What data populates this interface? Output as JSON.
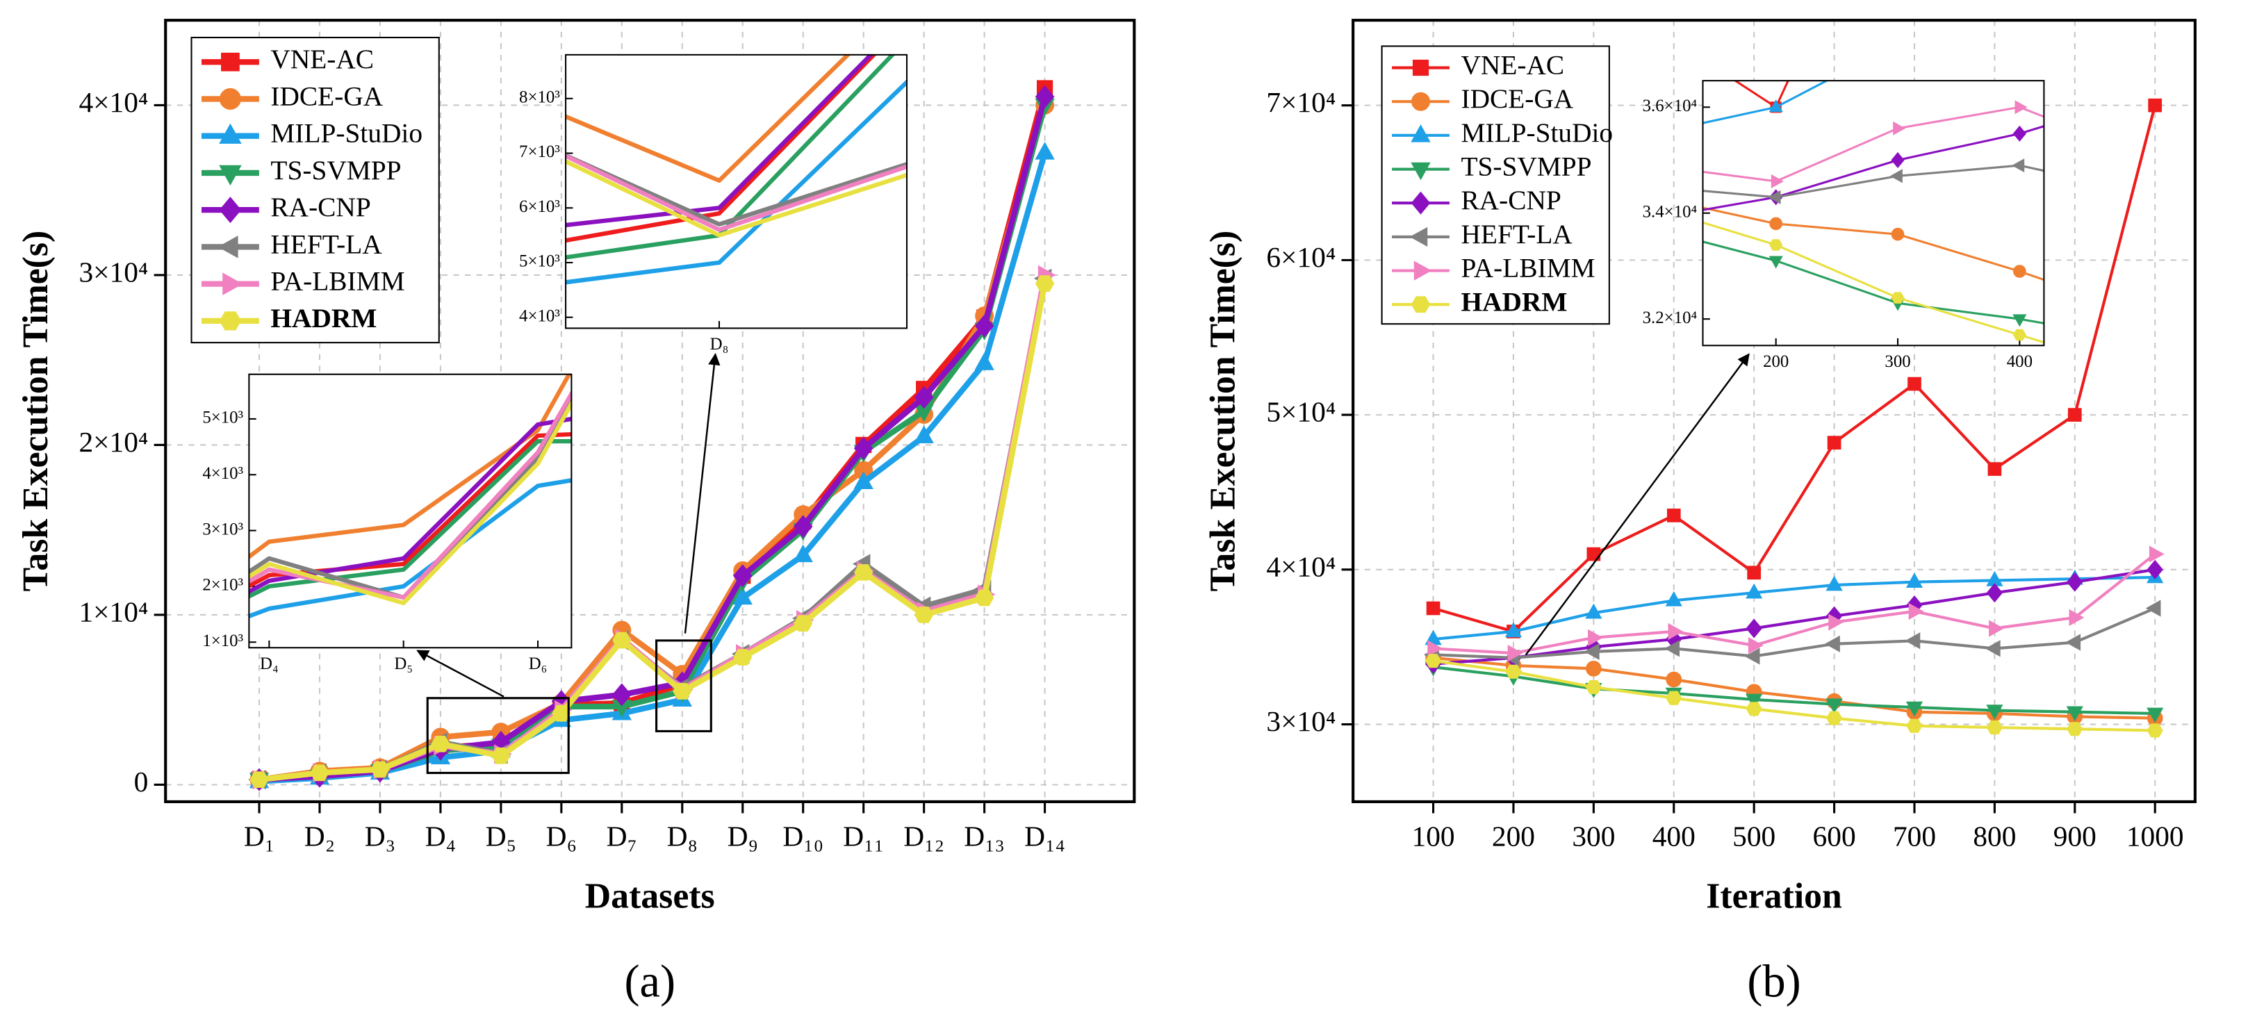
{
  "chart_data": [
    {
      "type": "line",
      "label": "(a)",
      "x_label": "Datasets",
      "y_label": "Task Execution Time(s)",
      "categories": [
        "D₁",
        "D₂",
        "D₃",
        "D₄",
        "D₅",
        "D₆",
        "D₇",
        "D₈",
        "D₉",
        "D₁₀",
        "D₁₁",
        "D₁₂",
        "D₁₃",
        "D₁₄"
      ],
      "ylim": [
        -1000,
        45000
      ],
      "yticks": [
        0,
        {
          "value": 10000,
          "label": "1×10⁴"
        },
        {
          "value": 20000,
          "label": "2×10⁴"
        },
        {
          "value": 30000,
          "label": "3×10⁴"
        },
        {
          "value": 40000,
          "label": "4×10⁴"
        }
      ],
      "grid": true,
      "series": [
        {
          "name": "VNE-AC",
          "color": "#ee1c1c",
          "marker": "square",
          "values": [
            300,
            600,
            900,
            2200,
            2400,
            4700,
            4800,
            5900,
            12300,
            15500,
            20000,
            23300,
            27500,
            41000
          ]
        },
        {
          "name": "IDCE-GA",
          "color": "#f08030",
          "marker": "circle",
          "values": [
            300,
            800,
            1000,
            2800,
            3100,
            4800,
            9100,
            6500,
            12600,
            15900,
            18500,
            21800,
            27600,
            40000
          ]
        },
        {
          "name": "MILP-StuDio",
          "color": "#1ea0e8",
          "marker": "triangle-up",
          "values": [
            200,
            400,
            700,
            1600,
            2000,
            3800,
            4200,
            5000,
            11000,
            13500,
            17800,
            20500,
            24800,
            37200
          ]
        },
        {
          "name": "TS-SVMPP",
          "color": "#2aa060",
          "marker": "triangle-down",
          "values": [
            300,
            500,
            800,
            2000,
            2300,
            4600,
            4600,
            5500,
            12000,
            15000,
            19600,
            22000,
            26800,
            40000
          ]
        },
        {
          "name": "RA-CNP",
          "color": "#8a10c0",
          "marker": "diamond",
          "values": [
            300,
            500,
            800,
            2100,
            2500,
            4900,
            5300,
            6000,
            12300,
            15200,
            19800,
            22800,
            27000,
            40500
          ]
        },
        {
          "name": "HEFT-LA",
          "color": "#808080",
          "marker": "triangle-left",
          "values": [
            300,
            700,
            900,
            2500,
            1800,
            4300,
            8500,
            5700,
            7700,
            9800,
            13000,
            10500,
            11500,
            29800
          ]
        },
        {
          "name": "PA-LBIMM",
          "color": "#f080c0",
          "marker": "triangle-right",
          "values": [
            300,
            700,
            900,
            2300,
            1800,
            4400,
            8600,
            5600,
            7700,
            9700,
            12600,
            10200,
            11200,
            30000
          ]
        },
        {
          "name": "HADRM",
          "color": "#e8e040",
          "marker": "hexagon",
          "font_weight": "bold",
          "values": [
            300,
            700,
            900,
            2400,
            1700,
            4200,
            8500,
            5500,
            7500,
            9500,
            12500,
            10000,
            11000,
            29500
          ]
        }
      ],
      "insets": [
        {
          "ylim": [
            900,
            5800
          ],
          "yticks": [
            {
              "value": 1000,
              "label": "1×10³"
            },
            {
              "value": 2000,
              "label": "2×10³"
            },
            {
              "value": 3000,
              "label": "3×10³"
            },
            {
              "value": 4000,
              "label": "4×10³"
            },
            {
              "value": 5000,
              "label": "5×10³"
            }
          ]
        },
        {
          "ylim": [
            3800,
            8800
          ],
          "yticks": [
            {
              "value": 4000,
              "label": "4×10³"
            },
            {
              "value": 5000,
              "label": "5×10³"
            },
            {
              "value": 6000,
              "label": "6×10³"
            },
            {
              "value": 7000,
              "label": "7×10³"
            },
            {
              "value": 8000,
              "label": "8×10³"
            }
          ]
        }
      ]
    },
    {
      "type": "line",
      "label": "(b)",
      "x_label": "Iteration",
      "y_label": "Task Execution Time(s)",
      "x": [
        100,
        200,
        300,
        400,
        500,
        600,
        700,
        800,
        900,
        1000
      ],
      "xlim": [
        0,
        1050
      ],
      "xticks": [
        100,
        200,
        300,
        400,
        500,
        600,
        700,
        800,
        900,
        1000
      ],
      "ylim": [
        25000,
        75500
      ],
      "yticks": [
        {
          "value": 30000,
          "label": "3×10⁴"
        },
        {
          "value": 40000,
          "label": "4×10⁴"
        },
        {
          "value": 50000,
          "label": "5×10⁴"
        },
        {
          "value": 60000,
          "label": "6×10⁴"
        },
        {
          "value": 70000,
          "label": "7×10⁴"
        }
      ],
      "grid": true,
      "series": [
        {
          "name": "VNE-AC",
          "color": "#ee1c1c",
          "marker": "square",
          "values": [
            37500,
            36000,
            41000,
            43500,
            39800,
            48200,
            52000,
            46500,
            50000,
            70000
          ]
        },
        {
          "name": "IDCE-GA",
          "color": "#f08030",
          "marker": "circle",
          "values": [
            34300,
            33800,
            33600,
            32900,
            32100,
            31500,
            30800,
            30700,
            30500,
            30400
          ]
        },
        {
          "name": "MILP-StuDio",
          "color": "#1ea0e8",
          "marker": "triangle-up",
          "values": [
            35500,
            36000,
            37200,
            38000,
            38500,
            39000,
            39200,
            39300,
            39400,
            39500
          ]
        },
        {
          "name": "TS-SVMPP",
          "color": "#2aa060",
          "marker": "triangle-down",
          "values": [
            33700,
            33100,
            32300,
            32000,
            31600,
            31300,
            31100,
            30900,
            30800,
            30700
          ]
        },
        {
          "name": "RA-CNP",
          "color": "#8a10c0",
          "marker": "diamond",
          "values": [
            33900,
            34300,
            35000,
            35500,
            36200,
            37000,
            37700,
            38500,
            39200,
            40000
          ]
        },
        {
          "name": "HEFT-LA",
          "color": "#808080",
          "marker": "triangle-left",
          "values": [
            34500,
            34300,
            34700,
            34900,
            34400,
            35200,
            35400,
            34900,
            35300,
            37500
          ]
        },
        {
          "name": "PA-LBIMM",
          "color": "#f080c0",
          "marker": "triangle-right",
          "values": [
            34900,
            34600,
            35600,
            36000,
            35100,
            36600,
            37300,
            36200,
            36900,
            41000
          ]
        },
        {
          "name": "HADRM",
          "color": "#e8e040",
          "marker": "hexagon",
          "font_weight": "bold",
          "values": [
            34100,
            33400,
            32400,
            31700,
            31000,
            30400,
            29900,
            29800,
            29700,
            29600
          ]
        }
      ],
      "insets": [
        {
          "xlim": [
            140,
            420
          ],
          "xticks": [
            200,
            300,
            400
          ],
          "ylim": [
            31500,
            36500
          ],
          "yticks": [
            {
              "value": 32000,
              "label": "3.2×10⁴"
            },
            {
              "value": 34000,
              "label": "3.4×10⁴"
            },
            {
              "value": 36000,
              "label": "3.6×10⁴"
            }
          ]
        }
      ]
    }
  ]
}
